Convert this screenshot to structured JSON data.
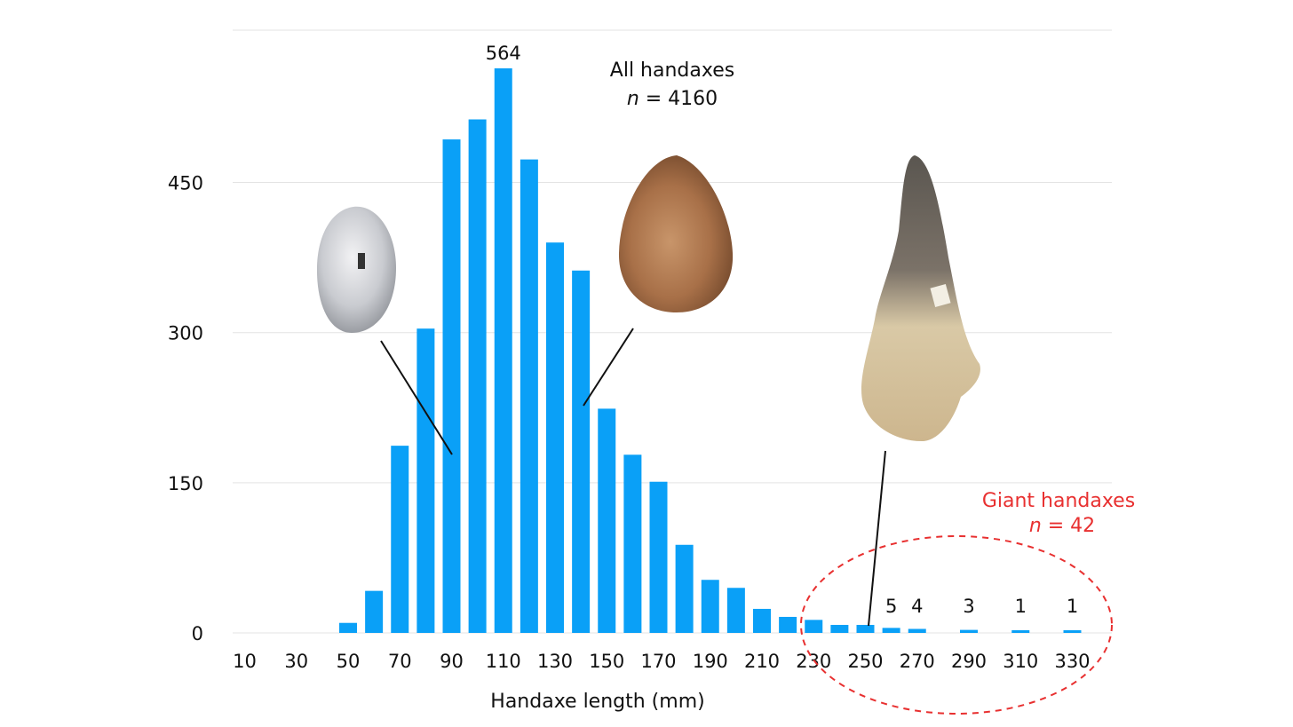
{
  "chart_data": {
    "type": "bar",
    "xlabel": "Handaxe length (mm)",
    "ylabel": "",
    "ylim": [
      0,
      564
    ],
    "yticks": [
      0,
      150,
      300,
      450
    ],
    "x_tick_labels": [
      "10",
      "30",
      "50",
      "70",
      "90",
      "110",
      "130",
      "150",
      "170",
      "190",
      "210",
      "230",
      "250",
      "270",
      "290",
      "310",
      "330"
    ],
    "bins": [
      10,
      20,
      30,
      40,
      50,
      60,
      70,
      80,
      90,
      100,
      110,
      120,
      130,
      140,
      150,
      160,
      170,
      180,
      190,
      200,
      210,
      220,
      230,
      240,
      250,
      260,
      270,
      280,
      290,
      300,
      310,
      320,
      330
    ],
    "values": [
      0,
      0,
      0,
      0,
      10,
      42,
      187,
      304,
      493,
      513,
      564,
      473,
      390,
      362,
      224,
      178,
      151,
      88,
      53,
      45,
      24,
      16,
      13,
      8,
      8,
      5,
      4,
      0,
      3,
      0,
      1,
      0,
      1
    ],
    "grid": true,
    "legend": "none",
    "data_labels": [
      {
        "x": 110,
        "text": "564"
      },
      {
        "x": 260,
        "text": "5"
      },
      {
        "x": 270,
        "text": "4"
      },
      {
        "x": 290,
        "text": "3"
      },
      {
        "x": 310,
        "text": "1"
      },
      {
        "x": 330,
        "text": "1"
      }
    ],
    "annotations": {
      "all_title": "All handaxes",
      "all_n_var": "n",
      "all_n_rest": " = 4160",
      "giant_title": "Giant handaxes",
      "giant_n_var": "n",
      "giant_n_rest": " = 42",
      "giant_color": "#e83030"
    },
    "bar_color": "#0aa0f7"
  }
}
